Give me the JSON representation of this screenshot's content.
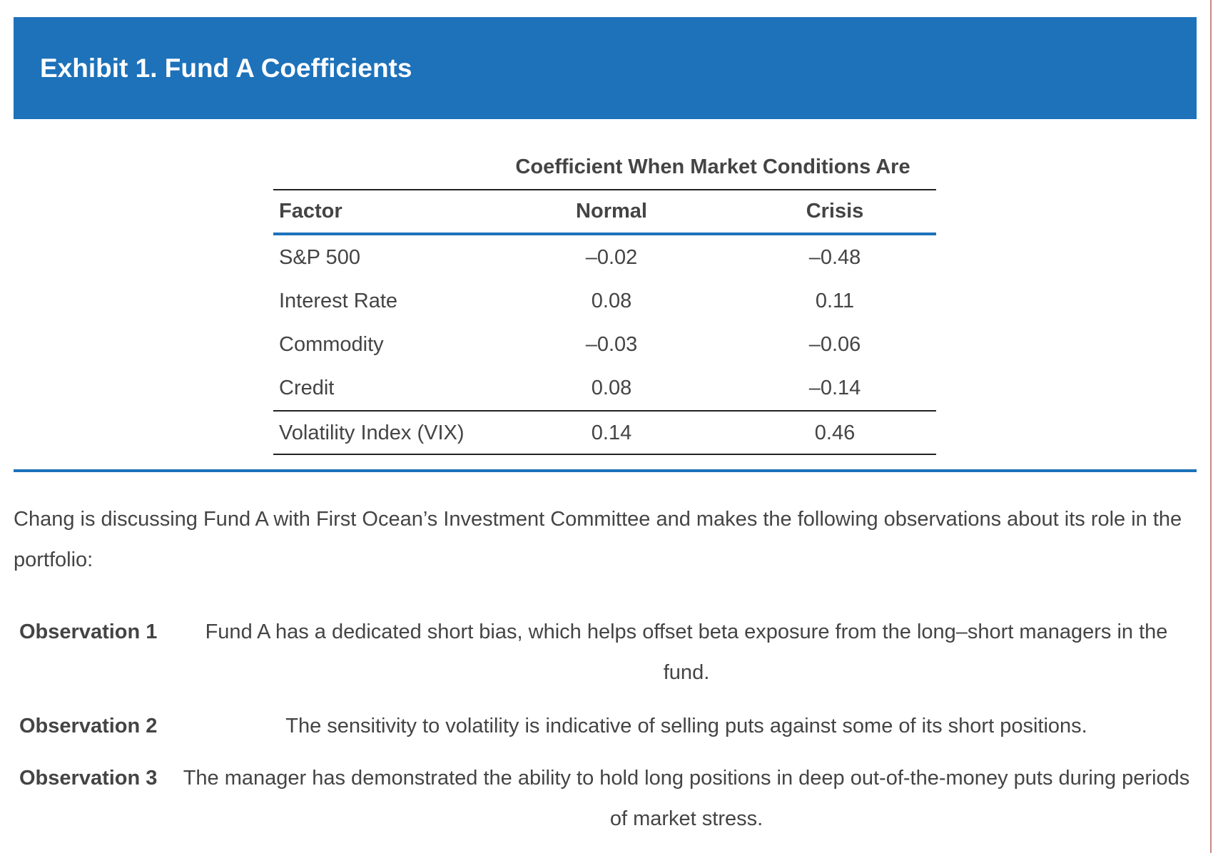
{
  "header": {
    "title": "Exhibit 1. Fund A Coefficients"
  },
  "table": {
    "group_header": "Coefficient When Market Conditions Are",
    "columns": [
      "Factor",
      "Normal",
      "Crisis"
    ],
    "rows": [
      [
        "S&P 500",
        "–0.02",
        "–0.48"
      ],
      [
        "Interest Rate",
        "0.08",
        "0.11"
      ],
      [
        "Commodity",
        "–0.03",
        "–0.06"
      ],
      [
        "Credit",
        "0.08",
        "–0.14"
      ],
      [
        "Volatility Index (VIX)",
        "0.14",
        "0.46"
      ]
    ]
  },
  "paragraph": "Chang is discussing Fund A with First Ocean’s Investment Committee and makes the following observations about its role in the portfolio:",
  "observations": [
    {
      "label": "Observation 1",
      "text": "Fund A has a dedicated short bias, which helps offset beta exposure from the long–short managers in the fund."
    },
    {
      "label": "Observation 2",
      "text": "The sensitivity to volatility is indicative of selling puts against some of its short positions."
    },
    {
      "label": "Observation 3",
      "text": "The manager has demonstrated the ability to hold long positions in deep out-of-the-money puts during periods of market stress."
    }
  ]
}
